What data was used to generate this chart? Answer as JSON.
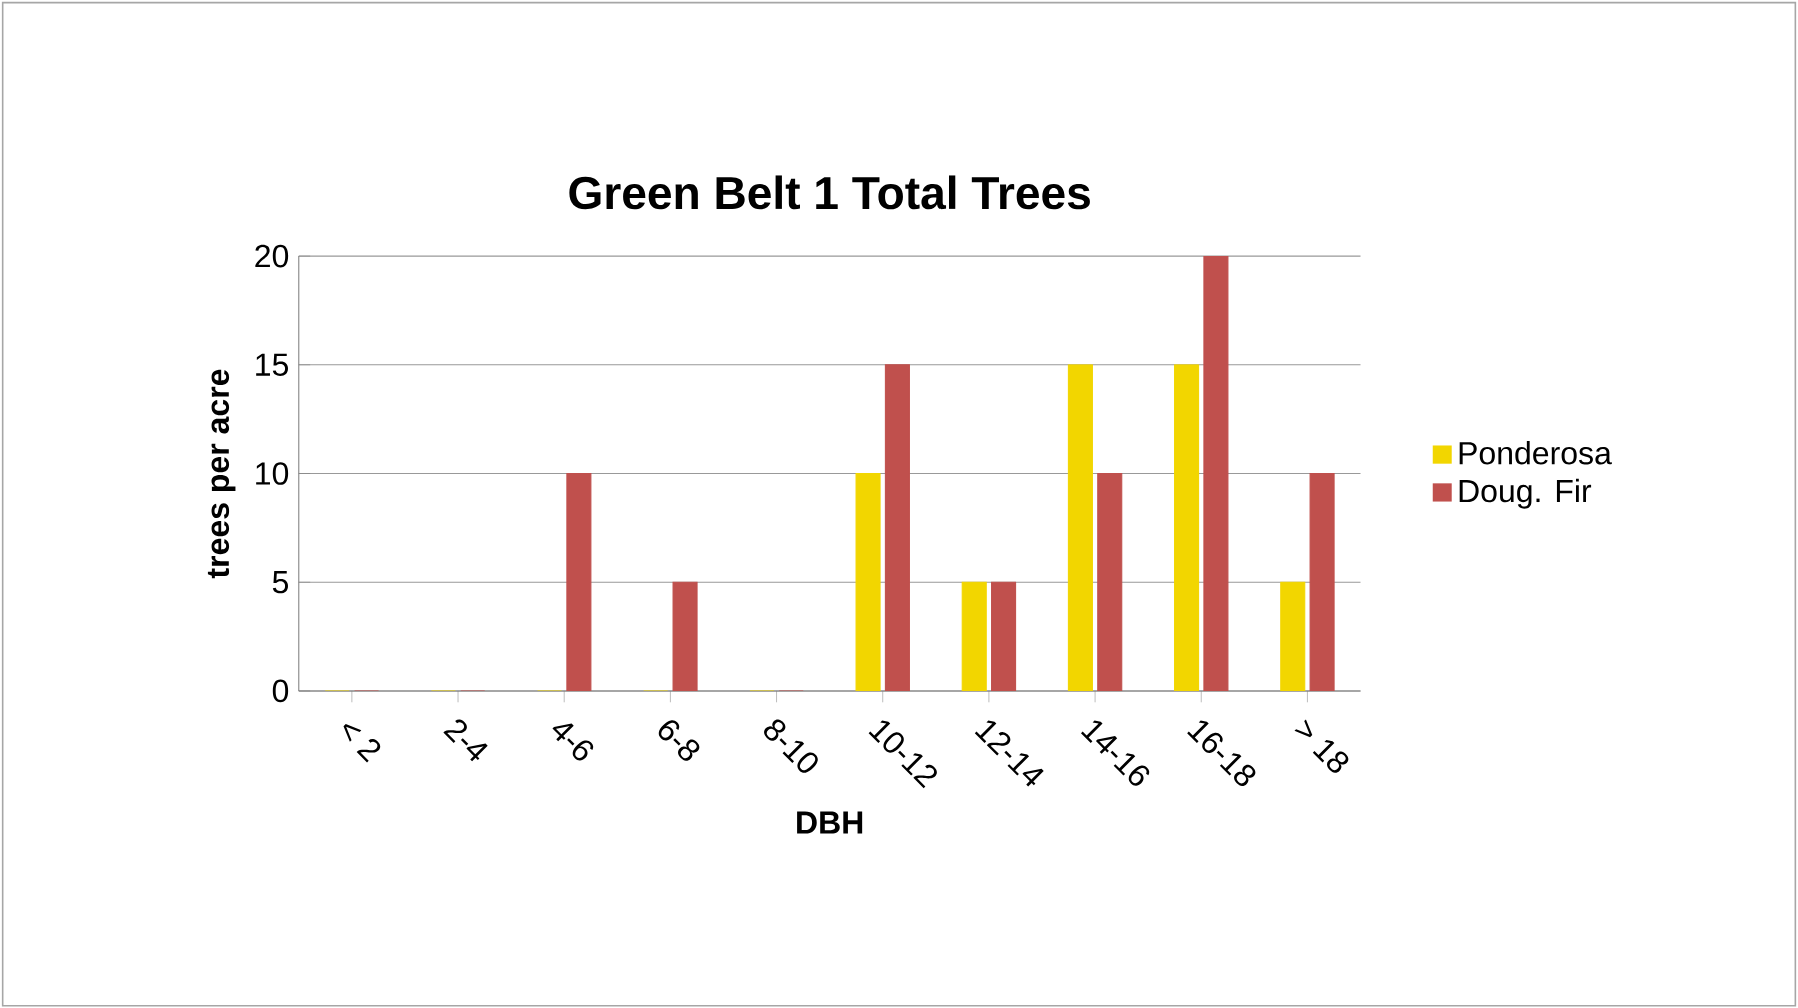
{
  "chart_data": {
    "type": "bar",
    "title": "Green Belt 1 Total Trees",
    "xlabel": "DBH",
    "ylabel": "trees per acre",
    "categories": [
      "< 2",
      "2-4",
      "4-6",
      "6-8",
      "8-10",
      "10-12",
      "12-14",
      "14-16",
      "16-18",
      "> 18"
    ],
    "series": [
      {
        "name": "Ponderosa",
        "color": "#f2d600",
        "values": [
          0,
          0,
          0,
          0,
          0,
          10,
          5,
          15,
          15,
          5
        ]
      },
      {
        "name": "Doug. Fir",
        "color": "#c0504d",
        "values": [
          0,
          0,
          10,
          5,
          0,
          15,
          5,
          10,
          20,
          10
        ]
      }
    ],
    "ylim": [
      0,
      20
    ],
    "yticks": [
      0,
      5,
      10,
      15,
      20
    ],
    "grid": "y",
    "legend": "right"
  }
}
